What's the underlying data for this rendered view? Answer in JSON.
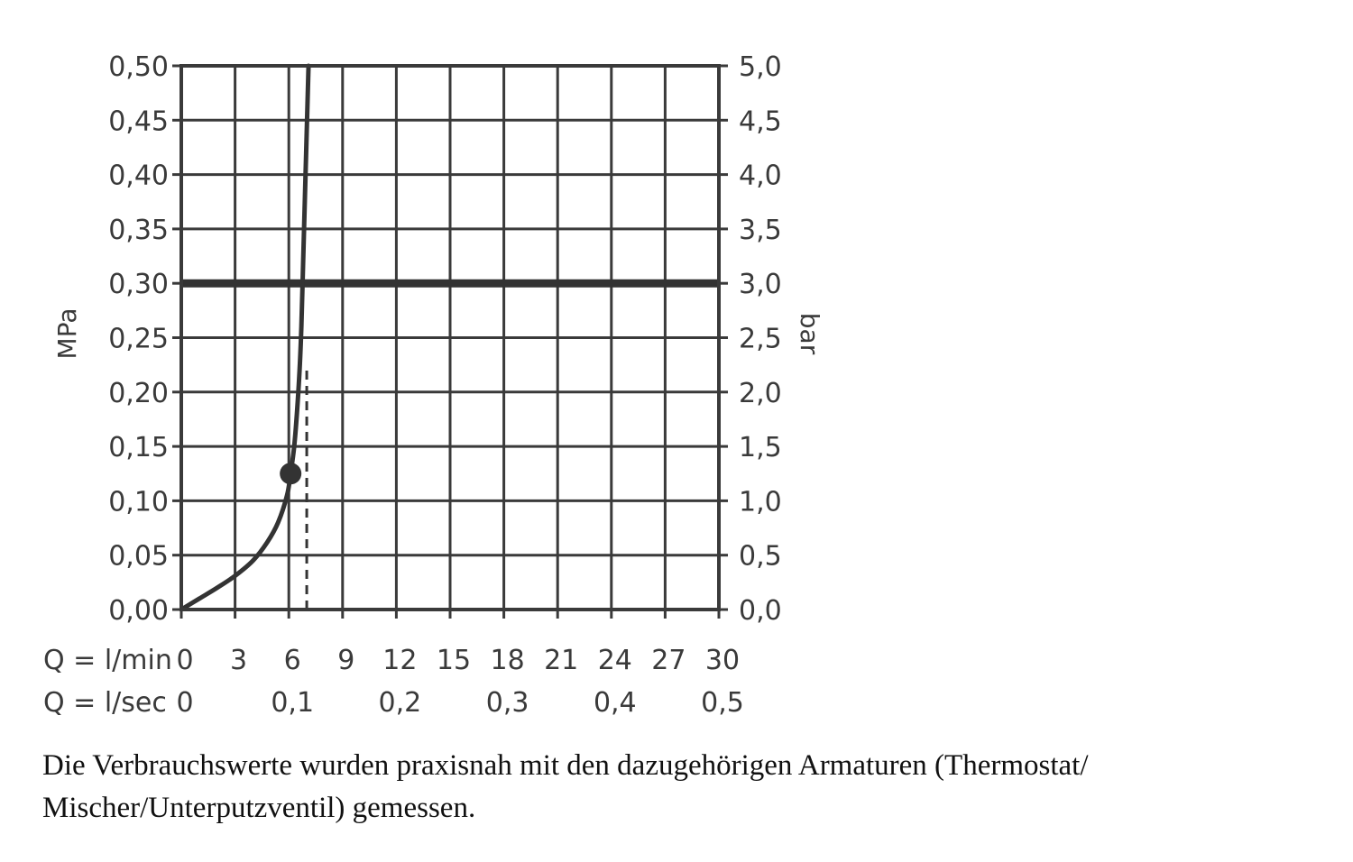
{
  "chart_data": {
    "type": "line",
    "x_label_primary": "Q = l/min",
    "x_label_secondary": "Q = l/sec",
    "x_ticks_primary": [
      "0",
      "3",
      "6",
      "9",
      "12",
      "15",
      "18",
      "21",
      "24",
      "27",
      "30"
    ],
    "x_ticks_secondary": [
      "0",
      "0,1",
      "0,2",
      "0,3",
      "0,4",
      "0,5"
    ],
    "x_ticks_secondary_values": [
      0,
      6,
      12,
      18,
      24,
      30
    ],
    "xlim": [
      0,
      30
    ],
    "y_label_left": "MPa",
    "y_label_right": "bar",
    "y_ticks_left": [
      "0,00",
      "0,05",
      "0,10",
      "0,15",
      "0,20",
      "0,25",
      "0,30",
      "0,35",
      "0,40",
      "0,45",
      "0,50"
    ],
    "y_ticks_right": [
      "0,0",
      "0,5",
      "1,0",
      "1,5",
      "2,0",
      "2,5",
      "3,0",
      "3,5",
      "4,0",
      "4,5",
      "5,0"
    ],
    "ylim": [
      0,
      0.5
    ],
    "grid": true,
    "series": [
      {
        "x": [
          0,
          1,
          2,
          3,
          4,
          4.8,
          5.4,
          5.9,
          6.1,
          6.3,
          6.45,
          6.6,
          6.7,
          6.8,
          6.9,
          7.0,
          7.1
        ],
        "y": [
          0,
          0.01,
          0.02,
          0.031,
          0.045,
          0.062,
          0.08,
          0.105,
          0.125,
          0.15,
          0.18,
          0.22,
          0.26,
          0.32,
          0.38,
          0.44,
          0.5
        ]
      }
    ],
    "reference_line": {
      "y": 0.3
    },
    "marker_point": {
      "x": 6.1,
      "y": 0.125
    },
    "dashed_marker": {
      "x": 7,
      "y_from": 0,
      "y_to": 0.22
    }
  },
  "caption": {
    "line1": "Die Verbrauchswerte wurden praxisnah mit den dazugehörigen Armaturen (Thermostat/",
    "line2": "Mischer/Unterputzventil) gemessen."
  },
  "colors": {
    "ink": "#3a3a3a",
    "curve": "#333333",
    "caption": "#111111",
    "background": "#ffffff"
  }
}
